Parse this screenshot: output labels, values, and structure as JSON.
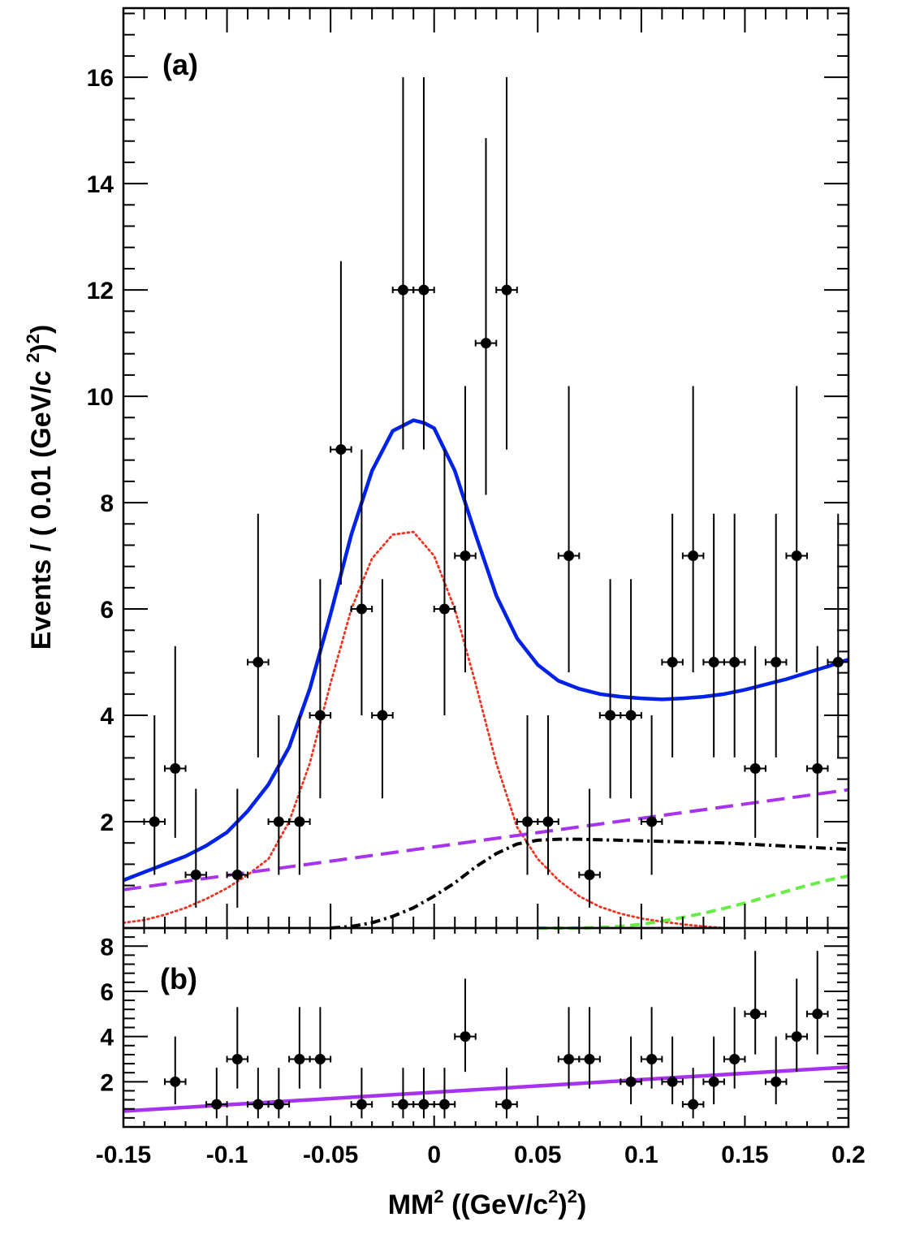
{
  "chart_data": [
    {
      "panel": "a",
      "type": "scatter",
      "label": "(a)",
      "xlim": [
        -0.15,
        0.2
      ],
      "ylim": [
        0,
        17.3
      ],
      "yticks": [
        "2",
        "4",
        "6",
        "8",
        "10",
        "12",
        "14",
        "16"
      ],
      "ylabel_parts": [
        "Events / ( 0.01 (GeV/c ",
        "2",
        ")",
        "2",
        ")"
      ],
      "points": {
        "x": [
          -0.135,
          -0.125,
          -0.115,
          -0.095,
          -0.085,
          -0.075,
          -0.065,
          -0.055,
          -0.045,
          -0.035,
          -0.025,
          -0.015,
          -0.005,
          0.005,
          0.015,
          0.025,
          0.035,
          0.045,
          0.055,
          0.065,
          0.075,
          0.085,
          0.095,
          0.105,
          0.115,
          0.125,
          0.135,
          0.145,
          0.155,
          0.165,
          0.175,
          0.185,
          0.195
        ],
        "y": [
          2,
          3,
          1,
          1,
          5,
          2,
          2,
          4,
          9,
          6,
          4,
          12,
          12,
          6,
          7,
          11,
          12,
          2,
          2,
          7,
          1,
          4,
          4,
          2,
          5,
          7,
          5,
          5,
          3,
          5,
          7,
          3,
          5
        ]
      },
      "curves": [
        {
          "name": "total fit",
          "color": "#0022e6",
          "style": "solid",
          "x": [
            -0.15,
            -0.14,
            -0.13,
            -0.12,
            -0.11,
            -0.1,
            -0.09,
            -0.08,
            -0.07,
            -0.06,
            -0.05,
            -0.04,
            -0.03,
            -0.02,
            -0.01,
            -0.005,
            0,
            0.01,
            0.02,
            0.03,
            0.04,
            0.05,
            0.06,
            0.07,
            0.08,
            0.09,
            0.1,
            0.11,
            0.12,
            0.13,
            0.14,
            0.15,
            0.16,
            0.17,
            0.18,
            0.19,
            0.2
          ],
          "y": [
            0.9,
            1.05,
            1.2,
            1.35,
            1.55,
            1.8,
            2.2,
            2.7,
            3.4,
            4.5,
            5.9,
            7.4,
            8.6,
            9.35,
            9.55,
            9.5,
            9.4,
            8.6,
            7.4,
            6.25,
            5.45,
            4.95,
            4.65,
            4.5,
            4.4,
            4.35,
            4.32,
            4.3,
            4.32,
            4.35,
            4.4,
            4.48,
            4.58,
            4.68,
            4.8,
            4.92,
            5.05
          ]
        },
        {
          "name": "signal",
          "color": "#ee3322",
          "style": "dotted",
          "x": [
            -0.15,
            -0.14,
            -0.13,
            -0.12,
            -0.11,
            -0.1,
            -0.09,
            -0.08,
            -0.07,
            -0.06,
            -0.05,
            -0.04,
            -0.03,
            -0.02,
            -0.01,
            0,
            0.01,
            0.02,
            0.03,
            0.04,
            0.05,
            0.06,
            0.07,
            0.08,
            0.09,
            0.1,
            0.11,
            0.12,
            0.13,
            0.14
          ],
          "y": [
            0.1,
            0.15,
            0.25,
            0.38,
            0.55,
            0.75,
            1.0,
            1.3,
            2.0,
            3.1,
            4.6,
            6.0,
            6.95,
            7.4,
            7.45,
            7.0,
            6.0,
            4.6,
            3.1,
            1.9,
            1.3,
            0.9,
            0.6,
            0.4,
            0.27,
            0.18,
            0.12,
            0.07,
            0.03,
            0.0
          ]
        },
        {
          "name": "linear background",
          "color": "#a833ee",
          "style": "longdash",
          "x": [
            -0.15,
            0.2
          ],
          "y": [
            0.72,
            2.6
          ]
        },
        {
          "name": "peaking background",
          "color": "#000000",
          "style": "dashdot",
          "x": [
            -0.05,
            -0.04,
            -0.03,
            -0.02,
            -0.01,
            0,
            0.01,
            0.02,
            0.03,
            0.04,
            0.05,
            0.06,
            0.07,
            0.08,
            0.09,
            0.1,
            0.11,
            0.12,
            0.13,
            0.14,
            0.15,
            0.16,
            0.17,
            0.18,
            0.19,
            0.2
          ],
          "y": [
            0.0,
            0.03,
            0.1,
            0.22,
            0.38,
            0.6,
            0.85,
            1.15,
            1.4,
            1.58,
            1.65,
            1.67,
            1.67,
            1.66,
            1.65,
            1.64,
            1.63,
            1.62,
            1.61,
            1.6,
            1.58,
            1.56,
            1.54,
            1.52,
            1.5,
            1.48
          ]
        },
        {
          "name": "other background",
          "color": "#66ee44",
          "style": "dashed",
          "x": [
            0.05,
            0.06,
            0.07,
            0.08,
            0.09,
            0.1,
            0.11,
            0.12,
            0.13,
            0.14,
            0.15,
            0.16,
            0.17,
            0.18,
            0.19,
            0.2
          ],
          "y": [
            0.0,
            0.0,
            0.0,
            0.01,
            0.03,
            0.07,
            0.13,
            0.2,
            0.28,
            0.37,
            0.47,
            0.58,
            0.69,
            0.8,
            0.9,
            0.98
          ]
        }
      ]
    },
    {
      "panel": "b",
      "type": "scatter",
      "label": "(b)",
      "xlim": [
        -0.15,
        0.2
      ],
      "ylim": [
        0,
        8.8
      ],
      "yticks": [
        "2",
        "4",
        "6",
        "8"
      ],
      "xticks": [
        "-0.15",
        "-0.1",
        "-0.05",
        "0",
        "0.05",
        "0.1",
        "0.15",
        "0.2"
      ],
      "xlabel_parts": [
        "MM",
        "2",
        " ((GeV/c",
        "2",
        ")",
        "2",
        ")"
      ],
      "points": {
        "x": [
          -0.125,
          -0.105,
          -0.095,
          -0.085,
          -0.075,
          -0.065,
          -0.055,
          -0.035,
          -0.015,
          -0.005,
          0.005,
          0.015,
          0.035,
          0.065,
          0.075,
          0.095,
          0.105,
          0.115,
          0.125,
          0.135,
          0.145,
          0.155,
          0.165,
          0.175,
          0.185
        ],
        "y": [
          2,
          1,
          3,
          1,
          1,
          3,
          3,
          1,
          1,
          1,
          1,
          4,
          1,
          3,
          3,
          2,
          3,
          2,
          1,
          2,
          3,
          5,
          2,
          4,
          5
        ]
      },
      "curves": [
        {
          "name": "linear fit",
          "color": "#a833ee",
          "style": "solid",
          "x": [
            -0.15,
            0.2
          ],
          "y": [
            0.7,
            2.65
          ]
        }
      ]
    }
  ]
}
